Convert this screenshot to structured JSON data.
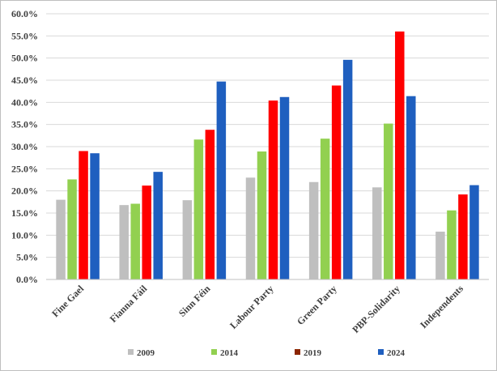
{
  "chart_data": {
    "type": "bar",
    "categories": [
      "Fine Gael",
      "Fianna Fáil",
      "Sinn Féin",
      "Labour Party",
      "Green Party",
      "PBP-Solidarity",
      "Independents"
    ],
    "series": [
      {
        "name": "2009",
        "color": "#bfbfbf",
        "values": [
          18.0,
          16.8,
          17.9,
          23.0,
          22.0,
          20.8,
          10.8
        ]
      },
      {
        "name": "2014",
        "color": "#92d050",
        "values": [
          22.6,
          17.1,
          31.6,
          28.9,
          31.8,
          35.2,
          15.6
        ]
      },
      {
        "name": "2019",
        "color": "#ff0000",
        "values": [
          29.0,
          21.2,
          33.8,
          40.4,
          43.8,
          56.0,
          19.2
        ]
      },
      {
        "name": "2024",
        "color": "#1f5fbf",
        "values": [
          28.5,
          24.3,
          44.7,
          41.2,
          49.6,
          41.4,
          21.3
        ]
      }
    ],
    "ylim": [
      0,
      60
    ],
    "ytick_step": 5,
    "yticks": [
      "0.0%",
      "5.0%",
      "10.0%",
      "15.0%",
      "20.0%",
      "25.0%",
      "30.0%",
      "35.0%",
      "40.0%",
      "45.0%",
      "50.0%",
      "55.0%",
      "60.0%"
    ],
    "grid": true,
    "legend_position": "bottom",
    "marker_2019": "#8b2500"
  }
}
